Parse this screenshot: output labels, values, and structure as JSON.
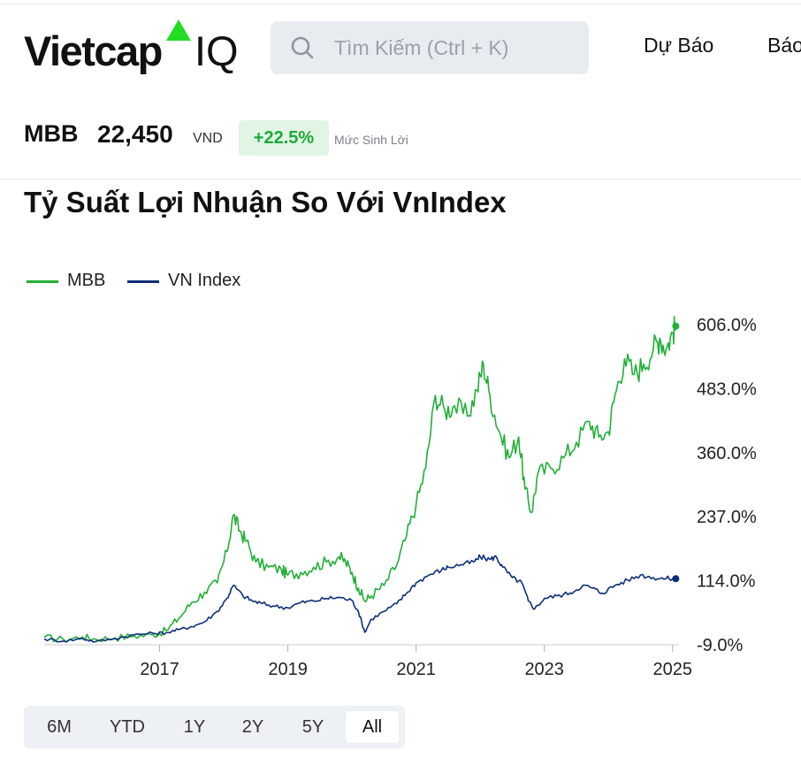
{
  "header": {
    "logo_text": "Vietcap",
    "logo_suffix": "IQ",
    "logo_accent_color": "#22dd22",
    "search_placeholder": "Tìm Kiếm (Ctrl + K)",
    "search_icon": "search-icon",
    "nav": [
      "Dự Báo",
      "Báo"
    ]
  },
  "quote": {
    "ticker": "MBB",
    "price": "22,450",
    "unit": "VND",
    "change": "+22.5%",
    "change_label": "Mức Sinh Lời",
    "change_color": "#1fa83a"
  },
  "chart_data": {
    "type": "line",
    "title": "Tỷ Suất Lợi Nhuận So Với VnIndex",
    "x_unit": "year",
    "xlim": [
      2015.2,
      2025.1
    ],
    "ylim": [
      -9,
      620
    ],
    "y_ticks": [
      -9,
      114,
      237,
      360,
      483,
      606
    ],
    "y_tick_labels": [
      "-9.0%",
      "114.0%",
      "237.0%",
      "360.0%",
      "483.0%",
      "606.0%"
    ],
    "x_ticks": [
      2017,
      2019,
      2021,
      2023,
      2025
    ],
    "x_tick_labels": [
      "2017",
      "2019",
      "2021",
      "2023",
      "2025"
    ],
    "legend_position": "top-left",
    "grid": false,
    "series": [
      {
        "name": "MBB",
        "color": "#22b038",
        "points": [
          [
            2015.2,
            5
          ],
          [
            2015.5,
            1
          ],
          [
            2015.8,
            6
          ],
          [
            2016.0,
            2
          ],
          [
            2016.3,
            4
          ],
          [
            2016.6,
            8
          ],
          [
            2016.9,
            10
          ],
          [
            2017.1,
            18
          ],
          [
            2017.3,
            42
          ],
          [
            2017.5,
            72
          ],
          [
            2017.7,
            92
          ],
          [
            2017.9,
            110
          ],
          [
            2018.05,
            170
          ],
          [
            2018.15,
            240
          ],
          [
            2018.25,
            210
          ],
          [
            2018.35,
            190
          ],
          [
            2018.5,
            150
          ],
          [
            2018.7,
            140
          ],
          [
            2018.9,
            135
          ],
          [
            2019.0,
            125
          ],
          [
            2019.2,
            130
          ],
          [
            2019.4,
            140
          ],
          [
            2019.6,
            150
          ],
          [
            2019.8,
            160
          ],
          [
            2019.9,
            150
          ],
          [
            2020.0,
            130
          ],
          [
            2020.1,
            100
          ],
          [
            2020.2,
            75
          ],
          [
            2020.3,
            85
          ],
          [
            2020.5,
            105
          ],
          [
            2020.7,
            145
          ],
          [
            2020.85,
            200
          ],
          [
            2021.0,
            260
          ],
          [
            2021.15,
            330
          ],
          [
            2021.3,
            470
          ],
          [
            2021.45,
            440
          ],
          [
            2021.6,
            450
          ],
          [
            2021.8,
            430
          ],
          [
            2021.95,
            480
          ],
          [
            2022.05,
            530
          ],
          [
            2022.15,
            470
          ],
          [
            2022.3,
            400
          ],
          [
            2022.45,
            350
          ],
          [
            2022.6,
            390
          ],
          [
            2022.7,
            290
          ],
          [
            2022.8,
            245
          ],
          [
            2022.9,
            320
          ],
          [
            2023.1,
            330
          ],
          [
            2023.3,
            350
          ],
          [
            2023.5,
            380
          ],
          [
            2023.7,
            420
          ],
          [
            2023.85,
            390
          ],
          [
            2024.0,
            400
          ],
          [
            2024.1,
            470
          ],
          [
            2024.25,
            540
          ],
          [
            2024.4,
            510
          ],
          [
            2024.55,
            530
          ],
          [
            2024.7,
            560
          ],
          [
            2024.8,
            580
          ],
          [
            2024.9,
            560
          ],
          [
            2025.0,
            590
          ],
          [
            2025.05,
            603
          ]
        ]
      },
      {
        "name": "VN Index",
        "color": "#0c2f7a",
        "points": [
          [
            2015.2,
            2
          ],
          [
            2015.5,
            -2
          ],
          [
            2015.8,
            3
          ],
          [
            2016.0,
            -3
          ],
          [
            2016.3,
            3
          ],
          [
            2016.6,
            10
          ],
          [
            2016.9,
            13
          ],
          [
            2017.1,
            14
          ],
          [
            2017.3,
            20
          ],
          [
            2017.5,
            26
          ],
          [
            2017.7,
            35
          ],
          [
            2017.9,
            55
          ],
          [
            2018.05,
            80
          ],
          [
            2018.15,
            105
          ],
          [
            2018.3,
            85
          ],
          [
            2018.45,
            75
          ],
          [
            2018.6,
            70
          ],
          [
            2018.8,
            65
          ],
          [
            2019.0,
            62
          ],
          [
            2019.2,
            72
          ],
          [
            2019.4,
            75
          ],
          [
            2019.6,
            80
          ],
          [
            2019.8,
            82
          ],
          [
            2020.0,
            76
          ],
          [
            2020.1,
            55
          ],
          [
            2020.2,
            15
          ],
          [
            2020.3,
            40
          ],
          [
            2020.5,
            55
          ],
          [
            2020.7,
            70
          ],
          [
            2020.85,
            90
          ],
          [
            2021.0,
            110
          ],
          [
            2021.2,
            125
          ],
          [
            2021.4,
            135
          ],
          [
            2021.5,
            140
          ],
          [
            2021.7,
            145
          ],
          [
            2021.9,
            150
          ],
          [
            2022.0,
            160
          ],
          [
            2022.15,
            155
          ],
          [
            2022.25,
            160
          ],
          [
            2022.35,
            140
          ],
          [
            2022.5,
            120
          ],
          [
            2022.65,
            110
          ],
          [
            2022.75,
            75
          ],
          [
            2022.85,
            60
          ],
          [
            2023.0,
            80
          ],
          [
            2023.2,
            85
          ],
          [
            2023.4,
            90
          ],
          [
            2023.6,
            105
          ],
          [
            2023.75,
            100
          ],
          [
            2023.9,
            90
          ],
          [
            2024.1,
            105
          ],
          [
            2024.3,
            115
          ],
          [
            2024.5,
            125
          ],
          [
            2024.7,
            120
          ],
          [
            2024.9,
            118
          ],
          [
            2025.05,
            118
          ]
        ]
      }
    ]
  },
  "range_selector": {
    "options": [
      "6M",
      "YTD",
      "1Y",
      "2Y",
      "5Y",
      "All"
    ],
    "active": "All"
  }
}
